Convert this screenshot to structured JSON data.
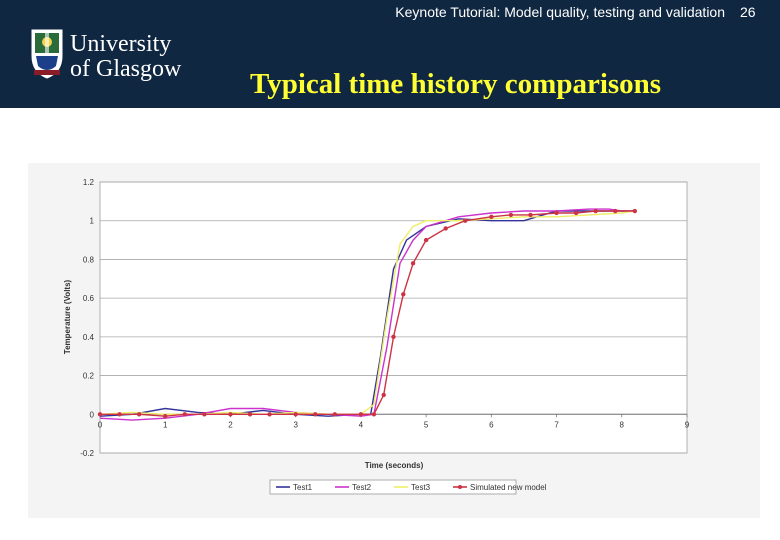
{
  "header": {
    "title": "Keynote Tutorial: Model quality, testing and validation",
    "slide_number": "26",
    "logo_text_line1": "University",
    "logo_text_line2": "of Glasgow"
  },
  "slide": {
    "title": "Typical time history comparisons"
  },
  "colors": {
    "header_bg": "#0f2741",
    "title_yellow": "#ffff33",
    "gridline": "#a8a8a8",
    "plot_bg": "#ffffff"
  },
  "chart_data": {
    "type": "line",
    "title": "",
    "xlabel": "Time (seconds)",
    "ylabel": "Temperature (Volts)",
    "xlim": [
      0,
      9
    ],
    "ylim": [
      -0.2,
      1.2
    ],
    "xticks": [
      "0",
      "1",
      "2",
      "3",
      "4",
      "5",
      "6",
      "7",
      "8",
      "9"
    ],
    "yticks": [
      "-0.2",
      "0",
      "0.2",
      "0.4",
      "0.6",
      "0.8",
      "1",
      "1.2"
    ],
    "grid": true,
    "legend_position": "bottom",
    "series": [
      {
        "name": "Test1",
        "color": "#333399",
        "marker": "none",
        "points": [
          [
            0,
            -0.01
          ],
          [
            0.5,
            0
          ],
          [
            1,
            0.03
          ],
          [
            1.5,
            0.01
          ],
          [
            2,
            0
          ],
          [
            2.5,
            0.02
          ],
          [
            3,
            0
          ],
          [
            3.5,
            -0.01
          ],
          [
            4,
            0
          ],
          [
            4.15,
            0
          ],
          [
            4.3,
            0.3
          ],
          [
            4.5,
            0.75
          ],
          [
            4.7,
            0.9
          ],
          [
            5,
            0.97
          ],
          [
            5.5,
            1.01
          ],
          [
            6,
            1.0
          ],
          [
            6.5,
            1.0
          ],
          [
            7,
            1.05
          ],
          [
            7.5,
            1.05
          ],
          [
            8,
            1.05
          ],
          [
            8.2,
            1.05
          ]
        ]
      },
      {
        "name": "Test2",
        "color": "#cc33cc",
        "marker": "none",
        "points": [
          [
            0,
            -0.02
          ],
          [
            0.5,
            -0.03
          ],
          [
            1,
            -0.02
          ],
          [
            1.5,
            0
          ],
          [
            2,
            0.03
          ],
          [
            2.5,
            0.03
          ],
          [
            3,
            0.01
          ],
          [
            3.5,
            0
          ],
          [
            4,
            -0.01
          ],
          [
            4.2,
            0
          ],
          [
            4.4,
            0.35
          ],
          [
            4.6,
            0.78
          ],
          [
            4.8,
            0.9
          ],
          [
            5,
            0.97
          ],
          [
            5.5,
            1.02
          ],
          [
            6,
            1.04
          ],
          [
            6.5,
            1.05
          ],
          [
            7,
            1.05
          ],
          [
            7.5,
            1.06
          ],
          [
            7.8,
            1.06
          ],
          [
            8,
            1.05
          ],
          [
            8.2,
            1.05
          ]
        ]
      },
      {
        "name": "Test3",
        "color": "#eeee66",
        "marker": "none",
        "points": [
          [
            0,
            0
          ],
          [
            0.5,
            0.01
          ],
          [
            1,
            0
          ],
          [
            1.5,
            0
          ],
          [
            2,
            0.01
          ],
          [
            2.5,
            0
          ],
          [
            3,
            0.01
          ],
          [
            3.5,
            0
          ],
          [
            4,
            0
          ],
          [
            4.2,
            0.05
          ],
          [
            4.4,
            0.5
          ],
          [
            4.6,
            0.88
          ],
          [
            4.8,
            0.97
          ],
          [
            5,
            1.0
          ],
          [
            5.5,
            1.0
          ],
          [
            6,
            1.01
          ],
          [
            6.5,
            1.02
          ],
          [
            7,
            1.02
          ],
          [
            7.5,
            1.03
          ],
          [
            8,
            1.04
          ],
          [
            8.2,
            1.05
          ]
        ]
      },
      {
        "name": "Simulated new model",
        "color": "#cc3344",
        "marker": "circle",
        "points": [
          [
            0,
            0
          ],
          [
            0.3,
            0
          ],
          [
            0.6,
            0
          ],
          [
            1,
            -0.01
          ],
          [
            1.3,
            0
          ],
          [
            1.6,
            0
          ],
          [
            2,
            0
          ],
          [
            2.3,
            0
          ],
          [
            2.6,
            0
          ],
          [
            3,
            0
          ],
          [
            3.3,
            0
          ],
          [
            3.6,
            0
          ],
          [
            4,
            0
          ],
          [
            4.2,
            0
          ],
          [
            4.35,
            0.1
          ],
          [
            4.5,
            0.4
          ],
          [
            4.65,
            0.62
          ],
          [
            4.8,
            0.78
          ],
          [
            5,
            0.9
          ],
          [
            5.3,
            0.96
          ],
          [
            5.6,
            1.0
          ],
          [
            6,
            1.02
          ],
          [
            6.3,
            1.03
          ],
          [
            6.6,
            1.03
          ],
          [
            7,
            1.04
          ],
          [
            7.3,
            1.04
          ],
          [
            7.6,
            1.05
          ],
          [
            7.9,
            1.05
          ],
          [
            8.2,
            1.05
          ]
        ]
      }
    ]
  }
}
